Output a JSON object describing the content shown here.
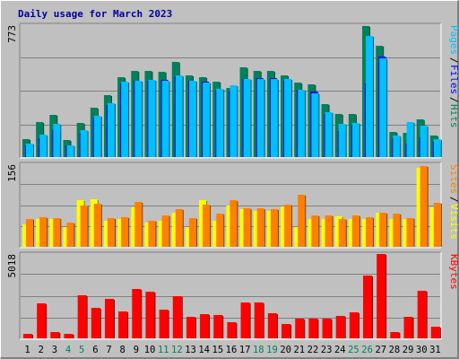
{
  "chart_data": [
    {
      "panel": "top",
      "type": "bar",
      "title": "Daily usage for March 2023",
      "y_max_label": "773",
      "ylim": [
        0,
        773
      ],
      "grid": true,
      "legend": [
        {
          "name": "Hits",
          "color": "#00805c"
        },
        {
          "name": "Files",
          "color": "#0000ff"
        },
        {
          "name": "Pages",
          "color": "#00c0ff"
        }
      ],
      "x": [
        1,
        2,
        3,
        4,
        5,
        6,
        7,
        8,
        9,
        10,
        11,
        12,
        13,
        14,
        15,
        16,
        17,
        18,
        19,
        20,
        21,
        22,
        23,
        24,
        25,
        26,
        27,
        28,
        29,
        30,
        31
      ],
      "weekend_days": [
        4,
        5,
        11,
        12,
        18,
        19,
        25,
        26
      ],
      "series": [
        {
          "name": "Hits",
          "color": "#00805c",
          "values": [
            105,
            205,
            245,
            100,
            200,
            290,
            365,
            470,
            505,
            505,
            500,
            560,
            480,
            470,
            440,
            405,
            525,
            505,
            505,
            480,
            435,
            425,
            310,
            250,
            250,
            770,
            650,
            145,
            140,
            220,
            125
          ]
        },
        {
          "name": "Files",
          "color": "#0000ff",
          "values": [
            70,
            110,
            160,
            70,
            140,
            230,
            305,
            430,
            445,
            445,
            450,
            475,
            445,
            440,
            395,
            385,
            460,
            465,
            465,
            445,
            395,
            385,
            250,
            150,
            190,
            430,
            590,
            110,
            80,
            115,
            90
          ]
        },
        {
          "name": "Pages",
          "color": "#00c0ff",
          "values": [
            80,
            130,
            195,
            70,
            160,
            240,
            315,
            440,
            445,
            450,
            445,
            480,
            445,
            435,
            400,
            420,
            455,
            455,
            460,
            455,
            395,
            375,
            265,
            195,
            200,
            710,
            580,
            125,
            205,
            185,
            105
          ]
        }
      ]
    },
    {
      "panel": "middle",
      "type": "bar",
      "y_max_label": "156",
      "ylim": [
        0,
        156
      ],
      "grid": true,
      "legend": [
        {
          "name": "Visits",
          "color": "#ffff00"
        },
        {
          "name": "Sites",
          "color": "#ff8000"
        }
      ],
      "x": [
        1,
        2,
        3,
        4,
        5,
        6,
        7,
        8,
        9,
        10,
        11,
        12,
        13,
        14,
        15,
        16,
        17,
        18,
        19,
        20,
        21,
        22,
        23,
        24,
        25,
        26,
        27,
        28,
        29,
        30,
        31
      ],
      "series": [
        {
          "name": "Visits",
          "color": "#ffff00",
          "values": [
            42,
            52,
            52,
            38,
            88,
            90,
            50,
            52,
            75,
            46,
            50,
            65,
            38,
            88,
            50,
            78,
            71,
            68,
            68,
            76,
            38,
            52,
            52,
            57,
            52,
            52,
            64,
            52,
            52,
            150,
            75
          ]
        },
        {
          "name": "Sites",
          "color": "#ff8000",
          "values": [
            53,
            56,
            55,
            45,
            78,
            82,
            55,
            56,
            85,
            50,
            60,
            72,
            55,
            80,
            63,
            88,
            73,
            73,
            71,
            80,
            98,
            60,
            60,
            52,
            60,
            56,
            65,
            62,
            55,
            152,
            83
          ]
        }
      ]
    },
    {
      "panel": "bottom",
      "type": "bar",
      "y_max_label": "5018",
      "ylim": [
        0,
        5018
      ],
      "grid": true,
      "legend": [
        {
          "name": "KBytes",
          "color": "#ff0000"
        }
      ],
      "x": [
        1,
        2,
        3,
        4,
        5,
        6,
        7,
        8,
        9,
        10,
        11,
        12,
        13,
        14,
        15,
        16,
        17,
        18,
        19,
        20,
        21,
        22,
        23,
        24,
        25,
        26,
        27,
        28,
        29,
        30,
        31
      ],
      "series": [
        {
          "name": "KBytes",
          "color": "#ff0000",
          "values": [
            290,
            2090,
            400,
            290,
            2560,
            1830,
            2370,
            1600,
            2910,
            2770,
            1710,
            2510,
            1270,
            1430,
            1400,
            960,
            2160,
            2160,
            1500,
            880,
            1200,
            1200,
            1200,
            1340,
            1560,
            3730,
            5018,
            390,
            1270,
            2850,
            700
          ]
        }
      ]
    }
  ]
}
